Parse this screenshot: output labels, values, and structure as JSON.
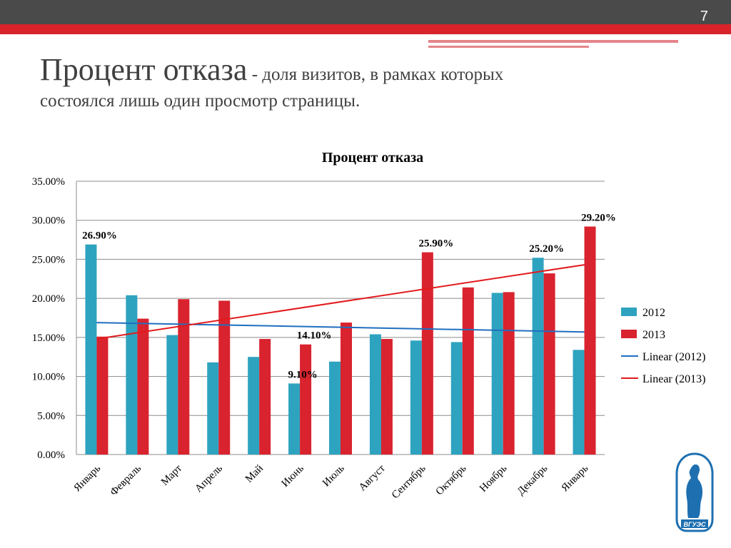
{
  "slide": {
    "number": "7",
    "title_main": "Процент отказа",
    "title_rest": " - доля визитов, в рамках которых",
    "title_line2": "состоялся лишь один просмотр страницы."
  },
  "logo": {
    "text": "ВГУЭС",
    "icon": "university-emblem-icon"
  },
  "colors": {
    "s2012": "#2ea3c0",
    "s2013": "#d9232e",
    "trend2012": "#1f6fbf",
    "trend2013": "#e31a1c"
  },
  "chart_data": {
    "type": "bar",
    "title": "Процент отказа",
    "categories": [
      "Январь",
      "Февраль",
      "Март",
      "Апрель",
      "Май",
      "Июнь",
      "Июль",
      "Август",
      "Сентябрь",
      "Октябрь",
      "Ноябрь",
      "Декабрь",
      "Январь"
    ],
    "series": [
      {
        "name": "2012",
        "values": [
          26.9,
          20.4,
          15.3,
          11.8,
          12.5,
          9.1,
          11.9,
          15.4,
          14.6,
          14.4,
          20.7,
          25.2,
          13.4
        ]
      },
      {
        "name": "2013",
        "values": [
          15.1,
          17.4,
          19.9,
          19.7,
          14.8,
          14.1,
          16.9,
          14.8,
          25.9,
          21.4,
          20.8,
          23.2,
          29.2
        ]
      }
    ],
    "trendlines": [
      {
        "name": "Linear (2012)",
        "start": 16.9,
        "end": 15.7
      },
      {
        "name": "Linear (2013)",
        "start": 14.8,
        "end": 24.3
      }
    ],
    "data_labels": [
      {
        "series": 0,
        "index": 0,
        "text": "26.90%"
      },
      {
        "series": 0,
        "index": 5,
        "text": "9.10%"
      },
      {
        "series": 1,
        "index": 5,
        "text": "14.10%"
      },
      {
        "series": 1,
        "index": 8,
        "text": "25.90%"
      },
      {
        "series": 0,
        "index": 11,
        "text": "25.20%"
      },
      {
        "series": 1,
        "index": 12,
        "text": "29.20%"
      }
    ],
    "y_ticks": [
      "0.00%",
      "5.00%",
      "10.00%",
      "15.00%",
      "20.00%",
      "25.00%",
      "30.00%",
      "35.00%"
    ],
    "ylim": [
      0,
      35
    ],
    "grid": true,
    "legend_position": "right",
    "legend": [
      "2012",
      "2013",
      "Linear (2012)",
      "Linear (2013)"
    ]
  }
}
